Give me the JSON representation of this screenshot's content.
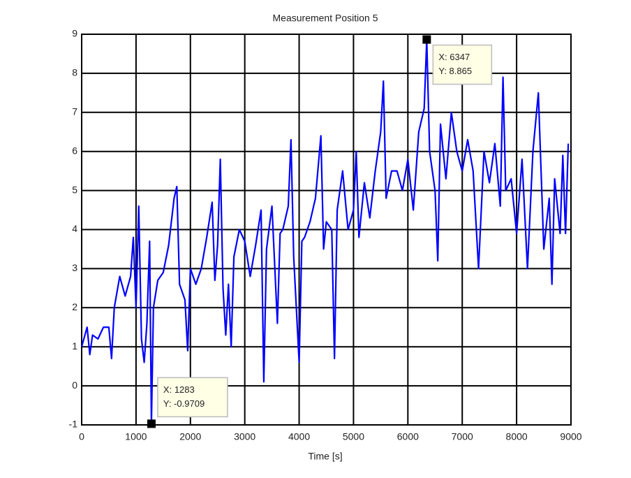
{
  "chart_data": {
    "type": "line",
    "title": "Measurement Position 5",
    "x_label": "Time [s]",
    "x": [
      0,
      100,
      150,
      200,
      300,
      400,
      500,
      550,
      600,
      700,
      800,
      900,
      950,
      1000,
      1050,
      1100,
      1150,
      1200,
      1250,
      1283,
      1320,
      1400,
      1500,
      1600,
      1700,
      1750,
      1800,
      1900,
      1950,
      2000,
      2100,
      2200,
      2300,
      2400,
      2450,
      2500,
      2550,
      2600,
      2650,
      2700,
      2750,
      2800,
      2900,
      3000,
      3100,
      3200,
      3300,
      3350,
      3400,
      3500,
      3600,
      3650,
      3700,
      3800,
      3850,
      3900,
      4000,
      4050,
      4100,
      4200,
      4300,
      4400,
      4450,
      4500,
      4600,
      4650,
      4700,
      4800,
      4900,
      5000,
      5050,
      5100,
      5200,
      5300,
      5400,
      5500,
      5550,
      5600,
      5700,
      5800,
      5900,
      6000,
      6100,
      6200,
      6300,
      6347,
      6400,
      6500,
      6550,
      6600,
      6700,
      6800,
      6900,
      7000,
      7100,
      7200,
      7300,
      7400,
      7500,
      7600,
      7700,
      7750,
      7800,
      7900,
      8000,
      8100,
      8200,
      8300,
      8400,
      8500,
      8600,
      8650,
      8700,
      8800,
      8850,
      8900,
      8950
    ],
    "series": [
      {
        "color": "#0000ff",
        "values": [
          1.0,
          1.5,
          0.8,
          1.3,
          1.2,
          1.5,
          1.5,
          0.7,
          2.0,
          2.8,
          2.3,
          2.8,
          3.8,
          2.0,
          4.6,
          1.2,
          0.6,
          1.6,
          3.7,
          -0.9709,
          2.0,
          2.7,
          2.9,
          3.6,
          4.8,
          5.1,
          2.6,
          2.2,
          0.9,
          3.0,
          2.6,
          3.0,
          3.8,
          4.7,
          2.7,
          3.6,
          5.8,
          2.5,
          1.3,
          2.6,
          1.0,
          3.3,
          4.0,
          3.7,
          2.8,
          3.6,
          4.5,
          0.1,
          3.5,
          4.6,
          1.6,
          3.9,
          4.0,
          4.6,
          6.3,
          3.3,
          0.6,
          3.7,
          3.8,
          4.2,
          4.8,
          6.4,
          3.5,
          4.2,
          4.0,
          0.7,
          4.5,
          5.5,
          4.0,
          4.5,
          6.0,
          3.8,
          5.2,
          4.3,
          5.5,
          6.5,
          7.8,
          4.8,
          5.5,
          5.5,
          5.0,
          5.8,
          4.5,
          6.5,
          7.1,
          8.865,
          6.0,
          5.0,
          3.2,
          6.7,
          5.3,
          7.0,
          6.0,
          5.5,
          6.3,
          5.5,
          3.0,
          6.0,
          5.2,
          6.2,
          4.6,
          7.9,
          5.0,
          5.3,
          3.9,
          5.8,
          3.0,
          6.0,
          7.5,
          3.5,
          4.8,
          2.6,
          5.3,
          3.9,
          5.9,
          3.9,
          6.2
        ]
      }
    ],
    "xlim": [
      0,
      9000
    ],
    "xticks": [
      0,
      1000,
      2000,
      3000,
      4000,
      5000,
      6000,
      7000,
      8000,
      9000
    ],
    "ylim": [
      -1,
      9
    ],
    "yticks": [
      -1,
      0,
      1,
      2,
      3,
      4,
      5,
      6,
      7,
      8,
      9
    ],
    "grid": true,
    "annotations": [
      {
        "x": 1283,
        "y": -0.9709,
        "label_x": "X: 1283",
        "label_y": "Y: -0.9709"
      },
      {
        "x": 6347,
        "y": 8.865,
        "label_x": "X: 6347",
        "label_y": "Y: 8.865"
      }
    ]
  }
}
